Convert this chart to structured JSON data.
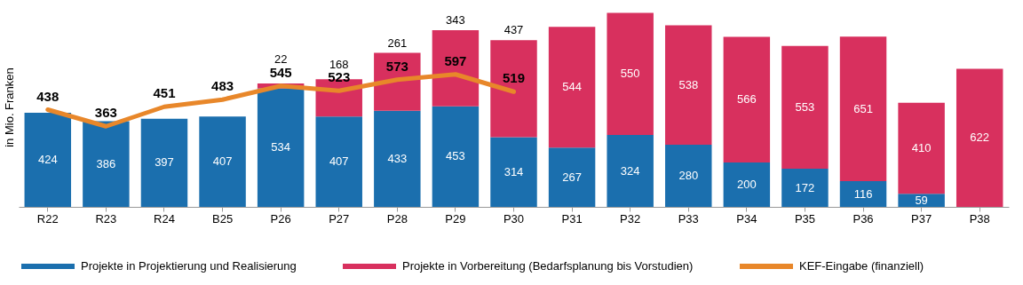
{
  "chart_data": {
    "type": "bar",
    "ylabel": "in Mio. Franken",
    "categories": [
      "R22",
      "R23",
      "R24",
      "B25",
      "P26",
      "P27",
      "P28",
      "P29",
      "P30",
      "P31",
      "P32",
      "P33",
      "P34",
      "P35",
      "P36",
      "P37",
      "P38"
    ],
    "stacked": true,
    "data_labels": true,
    "legend": "bottom",
    "grid": false,
    "series": [
      {
        "name": "Projekte in Projektierung und Realisierung",
        "color": "#1b6fae",
        "values": [
          424,
          386,
          397,
          407,
          534,
          407,
          433,
          453,
          314,
          267,
          324,
          280,
          200,
          172,
          116,
          59,
          null
        ]
      },
      {
        "name": "Projekte in Vorbereitung (Bedarfsplanung bis Vorstudien)",
        "color": "#d8305e",
        "values": [
          null,
          null,
          null,
          null,
          22,
          168,
          261,
          343,
          437,
          544,
          550,
          538,
          566,
          553,
          651,
          410,
          622
        ]
      },
      {
        "name": "KEF-Eingabe (finanziell)",
        "type": "line",
        "color": "#e8872a",
        "marker": "none",
        "values": [
          438,
          363,
          451,
          483,
          545,
          523,
          573,
          597,
          519,
          null,
          null,
          null,
          null,
          null,
          null,
          null,
          null
        ]
      }
    ]
  }
}
